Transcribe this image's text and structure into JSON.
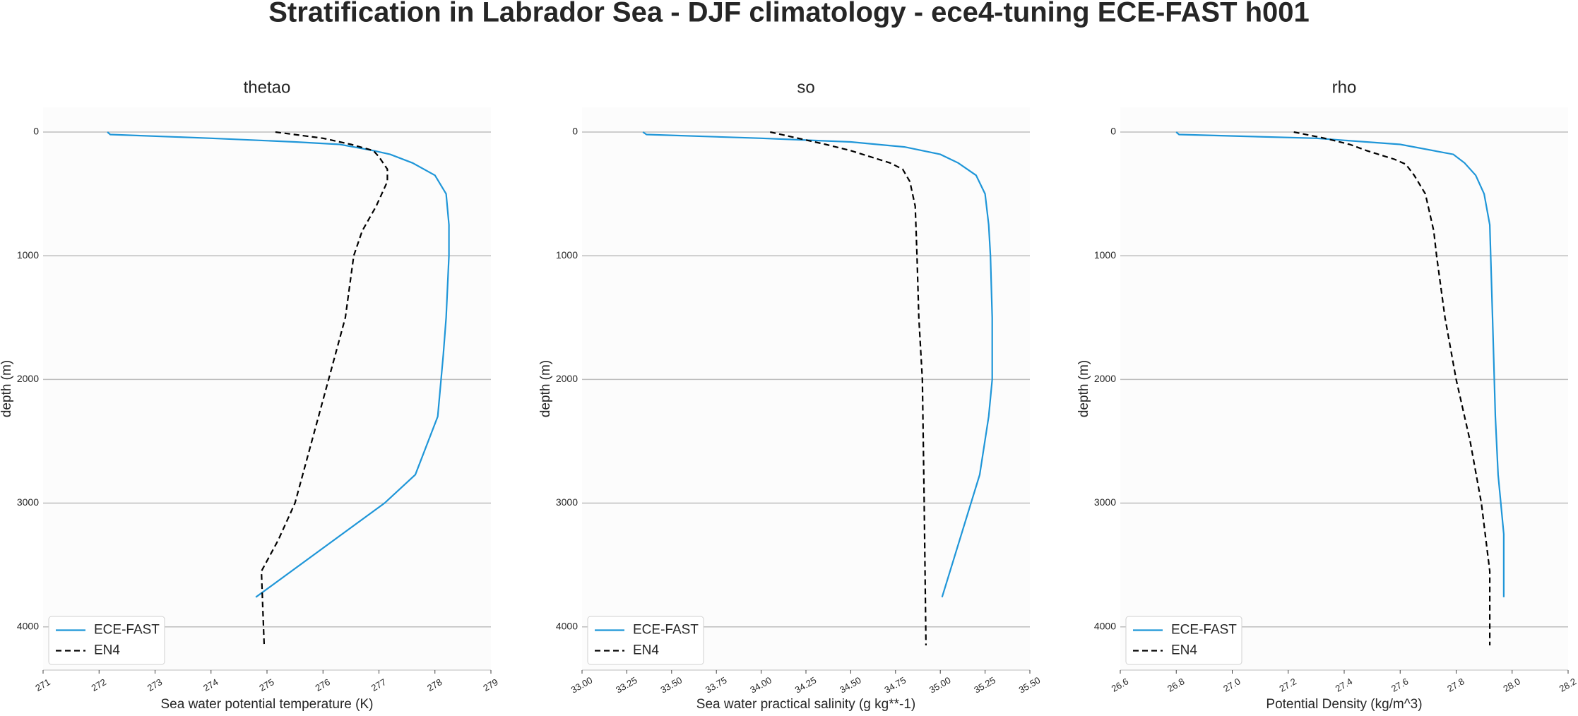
{
  "title": "Stratification in Labrador Sea - DJF climatology - ece4-tuning ECE-FAST h001",
  "chart_data": [
    {
      "type": "line",
      "title": "thetao",
      "xlabel": "Sea water potential temperature (K)",
      "ylabel": "depth (m)",
      "xlim": [
        271,
        279
      ],
      "xticks": [
        271,
        272,
        273,
        274,
        275,
        276,
        277,
        278,
        279
      ],
      "ylim": [
        4350,
        -200
      ],
      "yticks": [
        0,
        1000,
        2000,
        3000,
        4000
      ],
      "grid": true,
      "legend": "lower left",
      "series": [
        {
          "name": "ECE-FAST",
          "color": "#1f96d8",
          "dash": false,
          "depth": [
            0,
            20,
            50,
            80,
            100,
            150,
            180,
            250,
            350,
            500,
            750,
            1000,
            1500,
            1800,
            2300,
            2770,
            3000,
            3760
          ],
          "values": [
            272.15,
            272.2,
            274.0,
            275.5,
            276.3,
            276.9,
            277.2,
            277.6,
            278.0,
            278.2,
            278.25,
            278.25,
            278.2,
            278.15,
            278.05,
            277.65,
            277.1,
            274.8
          ]
        },
        {
          "name": "EN4",
          "color": "#000000",
          "dash": true,
          "depth": [
            0,
            50,
            100,
            150,
            200,
            300,
            400,
            600,
            800,
            1000,
            1500,
            2000,
            2500,
            3000,
            3300,
            3550,
            4150
          ],
          "values": [
            275.15,
            276.0,
            276.5,
            276.9,
            277.0,
            277.15,
            277.15,
            276.95,
            276.7,
            276.55,
            276.4,
            276.1,
            275.8,
            275.5,
            275.2,
            274.9,
            274.95
          ]
        }
      ]
    },
    {
      "type": "line",
      "title": "so",
      "xlabel": "Sea water practical salinity (g kg**-1)",
      "ylabel": "depth (m)",
      "xlim": [
        33,
        35.5
      ],
      "xticks": [
        {
          "value": 33,
          "label": "33.00"
        },
        {
          "value": 33.25,
          "label": "33.25"
        },
        {
          "value": 33.5,
          "label": "33.50"
        },
        {
          "value": 33.75,
          "label": "33.75"
        },
        {
          "value": 34,
          "label": "34.00"
        },
        {
          "value": 34.25,
          "label": "34.25"
        },
        {
          "value": 34.5,
          "label": "34.50"
        },
        {
          "value": 34.75,
          "label": "34.75"
        },
        {
          "value": 35,
          "label": "35.00"
        },
        {
          "value": 35.25,
          "label": "35.25"
        },
        {
          "value": 35.5,
          "label": "35.50"
        }
      ],
      "ylim": [
        4350,
        -200
      ],
      "yticks": [
        0,
        1000,
        2000,
        3000,
        4000
      ],
      "grid": true,
      "legend": "lower left",
      "series": [
        {
          "name": "ECE-FAST",
          "color": "#1f96d8",
          "dash": false,
          "depth": [
            0,
            20,
            50,
            80,
            120,
            180,
            250,
            350,
            500,
            750,
            1000,
            1500,
            2000,
            2300,
            2770,
            3760
          ],
          "values": [
            33.34,
            33.36,
            34.0,
            34.5,
            34.8,
            35.0,
            35.1,
            35.2,
            35.25,
            35.27,
            35.28,
            35.29,
            35.29,
            35.27,
            35.22,
            35.01
          ]
        },
        {
          "name": "EN4",
          "color": "#000000",
          "dash": true,
          "depth": [
            0,
            100,
            150,
            250,
            300,
            400,
            600,
            1000,
            1500,
            2000,
            3000,
            4150
          ],
          "values": [
            34.05,
            34.36,
            34.5,
            34.72,
            34.79,
            34.83,
            34.86,
            34.87,
            34.88,
            34.9,
            34.91,
            34.92
          ]
        }
      ]
    },
    {
      "type": "line",
      "title": "rho",
      "xlabel": "Potential Density (kg/m^3)",
      "ylabel": "depth (m)",
      "xlim": [
        26.6,
        28.2
      ],
      "xticks": [
        26.6,
        26.8,
        {
          "value": 27,
          "label": "27.0"
        },
        27.2,
        27.4,
        27.6,
        27.8,
        {
          "value": 28,
          "label": "28.0"
        },
        28.2
      ],
      "ylim": [
        4350,
        -200
      ],
      "yticks": [
        0,
        1000,
        2000,
        3000,
        4000
      ],
      "grid": true,
      "legend": "lower left",
      "series": [
        {
          "name": "ECE-FAST",
          "color": "#1f96d8",
          "dash": false,
          "depth": [
            0,
            20,
            50,
            100,
            180,
            250,
            350,
            500,
            750,
            1500,
            2300,
            2770,
            3250,
            3760
          ],
          "values": [
            26.8,
            26.81,
            27.3,
            27.6,
            27.79,
            27.83,
            27.87,
            27.9,
            27.92,
            27.93,
            27.94,
            27.95,
            27.97,
            27.97
          ]
        },
        {
          "name": "EN4",
          "color": "#000000",
          "dash": true,
          "depth": [
            0,
            50,
            100,
            150,
            220,
            260,
            350,
            500,
            800,
            1000,
            1500,
            2000,
            2500,
            3000,
            3550,
            4150
          ],
          "values": [
            27.22,
            27.33,
            27.42,
            27.48,
            27.58,
            27.62,
            27.65,
            27.69,
            27.72,
            27.73,
            27.76,
            27.8,
            27.85,
            27.89,
            27.92,
            27.92
          ]
        }
      ]
    }
  ]
}
